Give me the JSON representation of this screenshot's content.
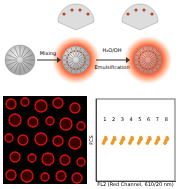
{
  "diagram": {
    "step1": "Mixing",
    "step2_line1": "H₂O/OH",
    "step2_line2": "Emulsification"
  },
  "chart_data": {
    "type": "scatter",
    "x_label": "FL2 (Red Channel, 610/20 nm)",
    "y_label": "FCS",
    "xlim": [
      0,
      9
    ],
    "ylim": [
      0,
      10
    ],
    "tick_labels": false,
    "grid": false,
    "series": [
      {
        "color": "#e89a2c",
        "marker": "circle",
        "x": [
          0.85,
          1.0,
          1.1,
          0.95,
          1.15,
          1.85,
          2.0,
          2.1,
          1.95,
          2.15,
          2.85,
          3.0,
          3.1,
          2.95,
          3.15,
          3.85,
          4.0,
          4.1,
          3.95,
          4.15,
          4.85,
          5.0,
          5.1,
          4.95,
          5.15,
          5.85,
          6.0,
          6.1,
          5.95,
          6.15,
          6.85,
          7.0,
          7.1,
          6.95,
          7.15,
          7.85,
          8.0,
          8.1,
          7.95,
          8.15
        ],
        "y": [
          4.6,
          5.0,
          5.3,
          4.8,
          5.1,
          4.6,
          5.0,
          5.3,
          4.8,
          5.1,
          4.6,
          5.0,
          5.3,
          4.8,
          5.1,
          4.6,
          5.0,
          5.3,
          4.8,
          5.1,
          4.6,
          5.0,
          5.3,
          4.8,
          5.1,
          4.6,
          5.0,
          5.3,
          4.8,
          5.1,
          4.6,
          5.0,
          5.3,
          4.8,
          5.1,
          4.6,
          5.0,
          5.3,
          4.8,
          5.1
        ]
      }
    ],
    "annotations": [
      {
        "text": "1",
        "x": 1,
        "y": 7.5
      },
      {
        "text": "2",
        "x": 2,
        "y": 7.5
      },
      {
        "text": "3",
        "x": 3,
        "y": 7.5
      },
      {
        "text": "4",
        "x": 4,
        "y": 7.5
      },
      {
        "text": "5",
        "x": 5,
        "y": 7.5
      },
      {
        "text": "6",
        "x": 6,
        "y": 7.5
      },
      {
        "text": "7",
        "x": 7,
        "y": 7.5
      },
      {
        "text": "8",
        "x": 8,
        "y": 7.5
      }
    ]
  }
}
